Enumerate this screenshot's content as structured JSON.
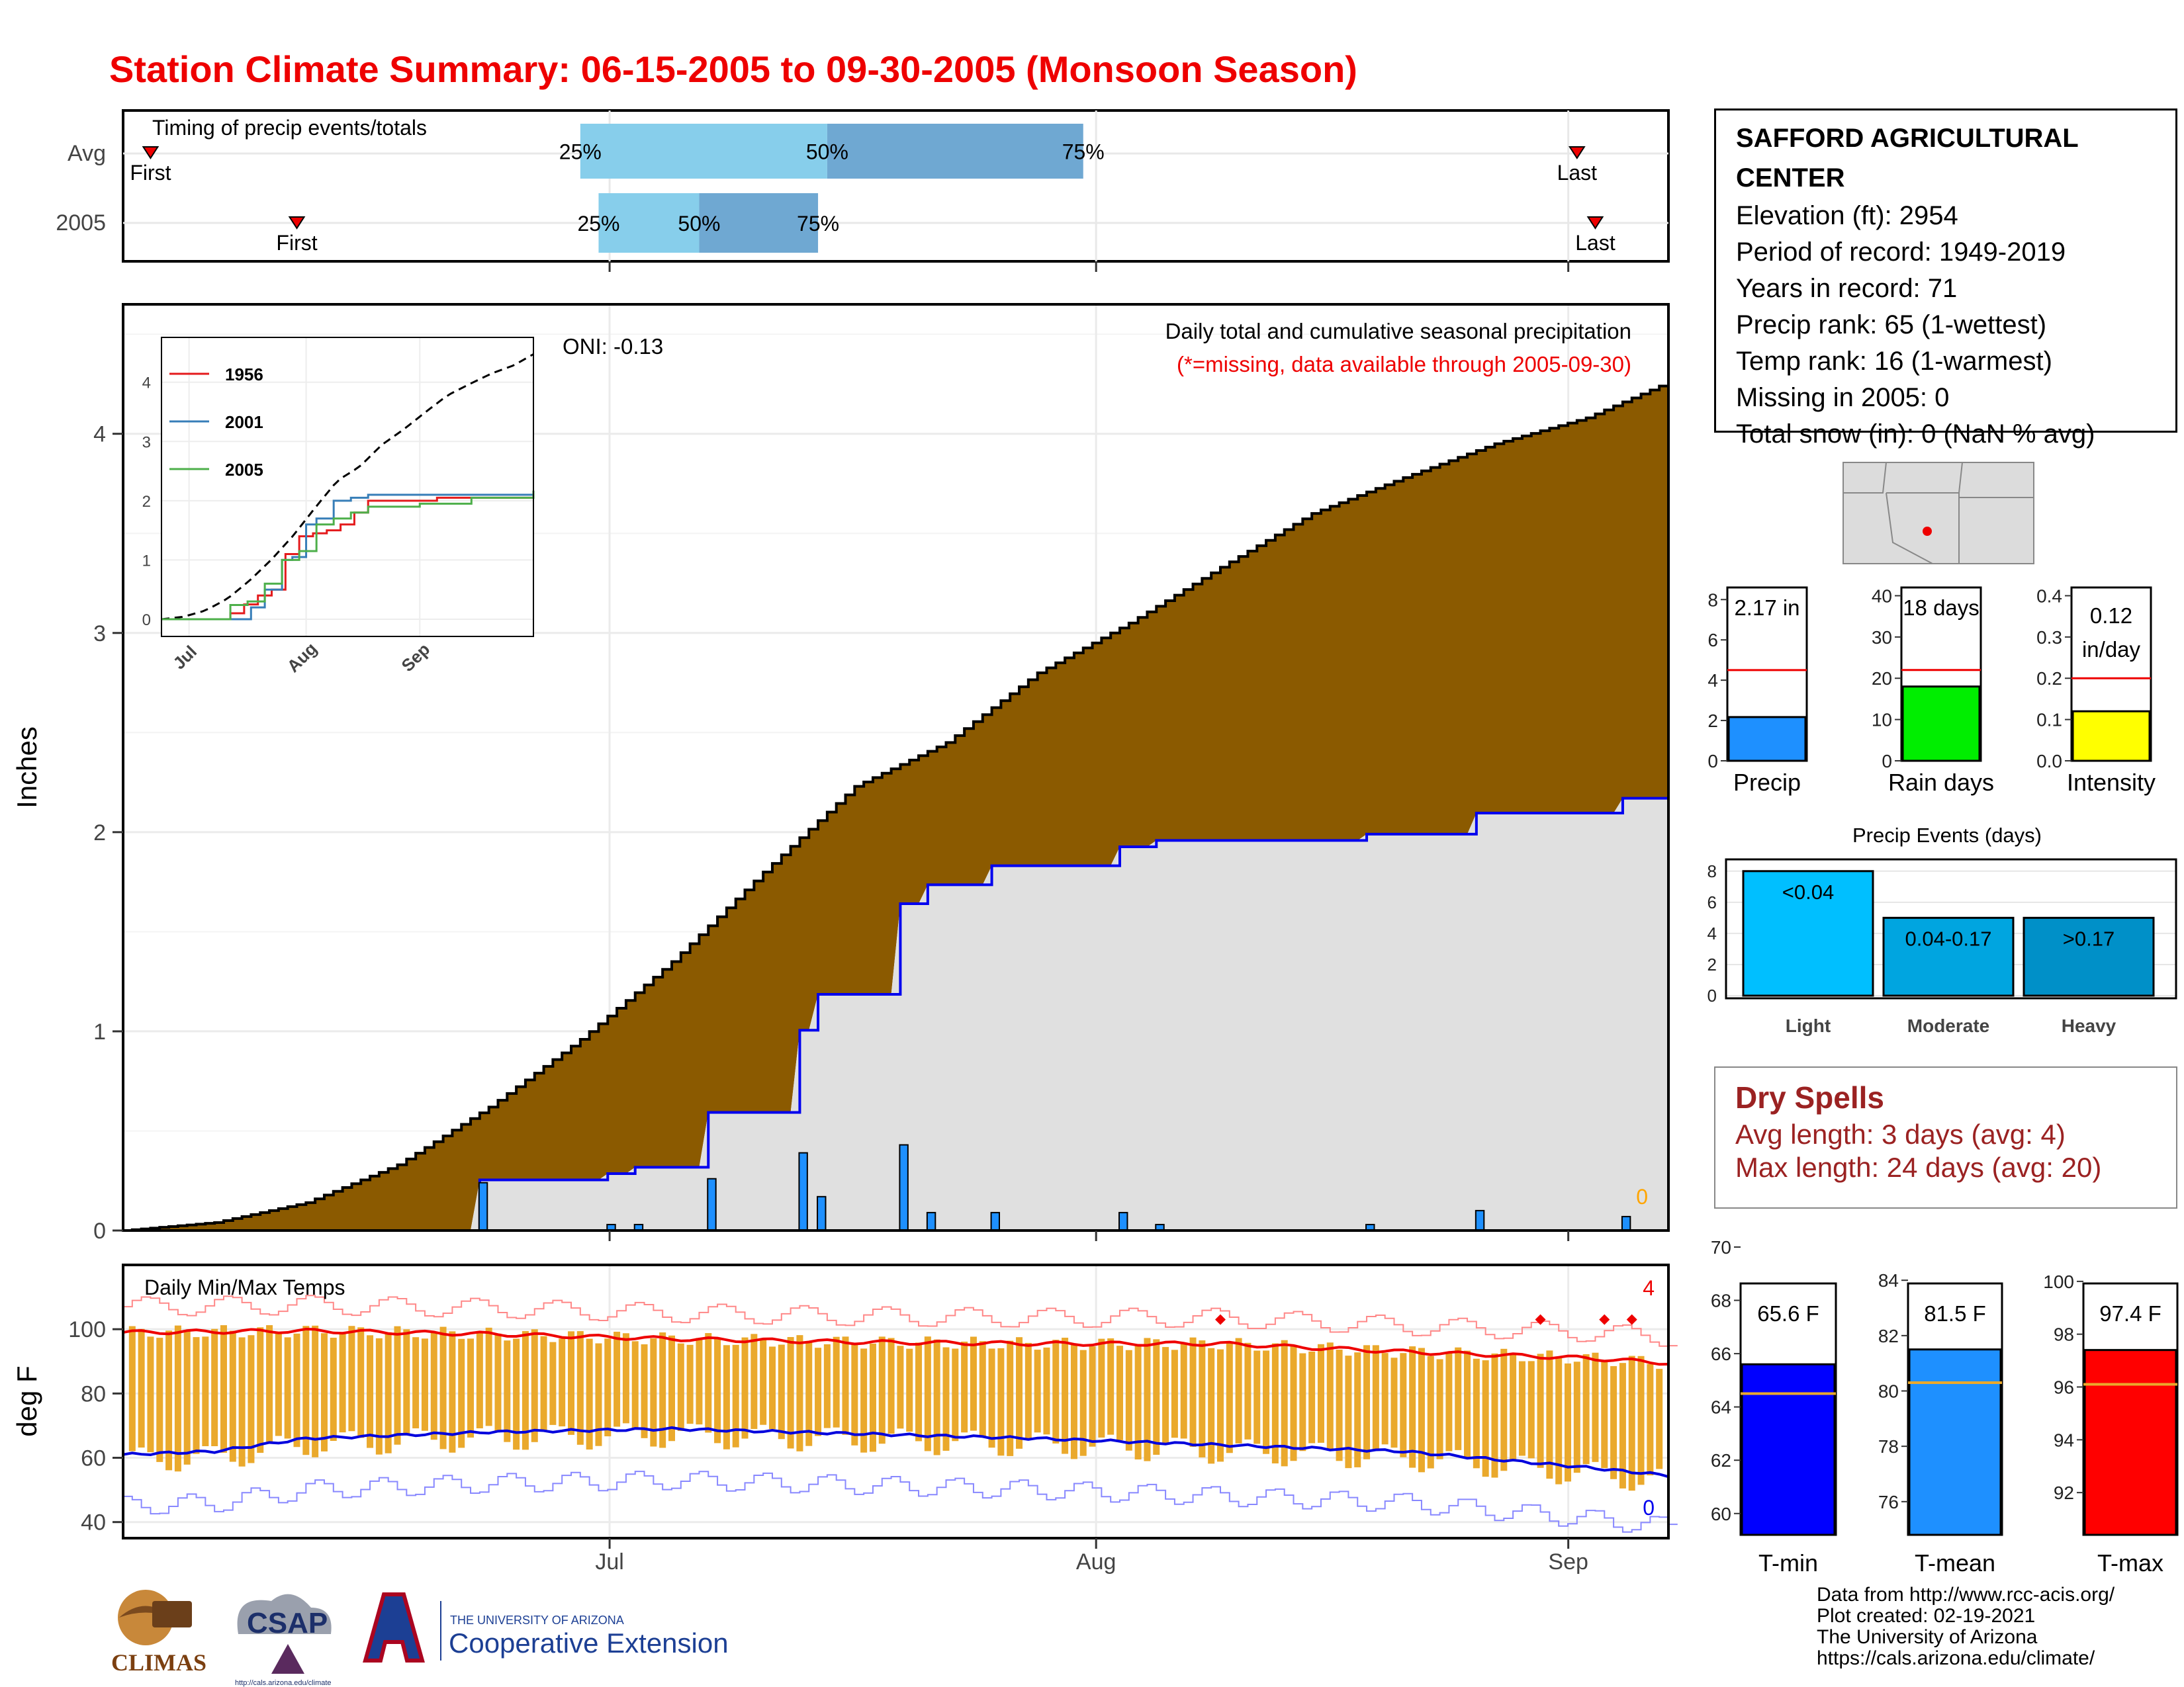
{
  "title": "Station Climate Summary: 06-15-2005 to 09-30-2005 (Monsoon Season)",
  "timing_panel": {
    "label": "Timing of precip events/totals",
    "rows": [
      {
        "label": "Avg",
        "first": "First",
        "last": "Last",
        "q25": "25%",
        "q50": "50%",
        "q75": "75%"
      },
      {
        "label": "2005",
        "first": "First",
        "last": "Last",
        "q25": "25%",
        "q50": "50%",
        "q75": "75%"
      }
    ]
  },
  "precip_panel": {
    "ylabel": "Inches",
    "yticks": [
      "0",
      "1",
      "2",
      "3",
      "4"
    ],
    "title": "Daily total and cumulative seasonal precipitation",
    "subtitle": "(*=missing, data available through 2005-09-30)",
    "oni": "ONI: -0.13",
    "missing_count": "0",
    "inset": {
      "legend": [
        "1956",
        "2001",
        "2005"
      ],
      "yticks": [
        "0",
        "1",
        "2",
        "3",
        "4"
      ],
      "xticks": [
        "Jul",
        "Aug",
        "Sep"
      ]
    }
  },
  "temp_panel": {
    "ylabel": "deg F",
    "yticks": [
      "40",
      "60",
      "80",
      "100"
    ],
    "title": "Daily Min/Max Temps",
    "xticks": [
      "Jul",
      "Aug",
      "Sep"
    ],
    "record_high_count": "4",
    "record_low_count": "0"
  },
  "station": {
    "name_line1": "SAFFORD AGRICULTURAL",
    "name_line2": "CENTER",
    "lines": [
      "Elevation (ft): 2954",
      "Period of record: 1949-2019",
      "Years in record: 71",
      "Precip rank: 65 (1-wettest)",
      "Temp rank: 16 (1-warmest)",
      "Missing in 2005: 0",
      "Total snow (in): 0 (NaN % avg)"
    ]
  },
  "mini_bars": [
    {
      "label": "Precip",
      "value_text": "2.17 in",
      "yticks": [
        "0",
        "2",
        "4",
        "6",
        "8"
      ],
      "color": "#1e90ff"
    },
    {
      "label": "Rain days",
      "value_text": "18 days",
      "yticks": [
        "0",
        "10",
        "20",
        "30",
        "40"
      ],
      "color": "#00ee00"
    },
    {
      "label": "Intensity",
      "value_text_1": "0.12",
      "value_text_2": "in/day",
      "yticks": [
        "0.0",
        "0.1",
        "0.2",
        "0.3",
        "0.4"
      ],
      "color": "#ffff00"
    }
  ],
  "events": {
    "title": "Precip Events (days)",
    "yticks": [
      "0",
      "2",
      "4",
      "6",
      "8"
    ],
    "bars": [
      {
        "label": "Light",
        "range": "<0.04",
        "color": "#00bfff"
      },
      {
        "label": "Moderate",
        "range": "0.04-0.17",
        "color": "#00a5e0"
      },
      {
        "label": "Heavy",
        "range": ">0.17",
        "color": "#0090c8"
      }
    ]
  },
  "dry_spells": {
    "title": "Dry Spells",
    "avg": "Avg length: 3 days (avg: 4)",
    "max": "Max length: 24 days (avg: 20)"
  },
  "temp_bars": [
    {
      "label": "T-min",
      "value_text": "65.6 F",
      "yticks": [
        "60",
        "62",
        "64",
        "66",
        "68",
        "70"
      ],
      "color": "#0000ff"
    },
    {
      "label": "T-mean",
      "value_text": "81.5 F",
      "yticks": [
        "76",
        "78",
        "80",
        "82",
        "84"
      ],
      "color": "#1e90ff"
    },
    {
      "label": "T-max",
      "value_text": "97.4 F",
      "yticks": [
        "92",
        "94",
        "96",
        "98",
        "100"
      ],
      "color": "#ff0000"
    }
  ],
  "footer": [
    "Data from http://www.rcc-acis.org/",
    "Plot created: 02-19-2021",
    "The University of Arizona",
    "https://cals.arizona.edu/climate/"
  ],
  "logos": {
    "climas": "CLIMAS",
    "csap": "CSAP",
    "csap_url": "http://cals.arizona.edu/climate",
    "ua_small": "THE UNIVERSITY OF ARIZONA",
    "ua_big": "Cooperative Extension"
  },
  "chart_data": [
    {
      "type": "bar",
      "title": "Timing of precip events/totals",
      "note": "day-of-season positions (day 0 = 06-15)",
      "series": [
        {
          "name": "Avg",
          "first": 3,
          "q25": 50,
          "q50": 77,
          "q75": 105,
          "last": 159
        },
        {
          "name": "2005",
          "first": 19,
          "q25": 52,
          "q50": 63,
          "q75": 76,
          "last": 161
        }
      ]
    },
    {
      "type": "area",
      "title": "Daily total and cumulative seasonal precipitation",
      "ylabel": "Inches",
      "ylim": [
        0,
        4.65
      ],
      "avg_cumulative_knots": {
        "x": [
          0,
          10,
          20,
          30,
          40,
          50,
          60,
          70,
          80,
          90,
          100,
          110,
          120,
          130,
          140,
          150,
          160,
          169
        ],
        "y": [
          0,
          0.04,
          0.14,
          0.33,
          0.62,
          0.96,
          1.35,
          1.8,
          2.23,
          2.45,
          2.8,
          3.05,
          3.33,
          3.6,
          3.78,
          3.95,
          4.08,
          4.26
        ]
      },
      "daily_precip_2005": {
        "x": [
          39,
          53,
          56,
          64,
          74,
          76,
          85,
          88,
          95,
          109,
          113,
          136,
          148,
          164
        ],
        "y": [
          0.24,
          0.03,
          0.03,
          0.26,
          0.39,
          0.17,
          0.43,
          0.09,
          0.09,
          0.09,
          0.03,
          0.03,
          0.1,
          0.07
        ]
      },
      "cumulative_2005_end": 2.17,
      "inset_series": [
        {
          "name": "1956",
          "x": [
            0,
            15,
            20,
            24,
            28,
            32,
            36,
            40,
            44,
            48,
            52,
            56,
            60,
            70,
            80,
            108
          ],
          "y": [
            0,
            0,
            0.1,
            0.25,
            0.4,
            0.5,
            1.1,
            1.4,
            1.45,
            1.5,
            1.6,
            1.8,
            2.0,
            2.0,
            2.05,
            2.05
          ]
        },
        {
          "name": "2001",
          "x": [
            0,
            20,
            26,
            30,
            35,
            38,
            42,
            45,
            50,
            55,
            60,
            80,
            108
          ],
          "y": [
            0,
            0,
            0.2,
            0.5,
            1.0,
            1.05,
            1.6,
            1.7,
            2.0,
            2.05,
            2.1,
            2.1,
            2.1
          ]
        },
        {
          "name": "2005",
          "x": [
            0,
            15,
            20,
            25,
            30,
            35,
            40,
            45,
            50,
            55,
            60,
            75,
            90,
            108
          ],
          "y": [
            0,
            0,
            0.24,
            0.3,
            0.6,
            1.0,
            1.15,
            1.6,
            1.7,
            1.8,
            1.9,
            1.95,
            2.05,
            2.17
          ]
        }
      ]
    },
    {
      "type": "line",
      "title": "Daily Min/Max Temps",
      "ylabel": "deg F",
      "ylim": [
        35,
        120
      ],
      "avg_tmax": {
        "x": [
          0,
          20,
          40,
          60,
          80,
          100,
          120,
          140,
          160,
          169
        ],
        "y": [
          99,
          99.5,
          98.5,
          97,
          96,
          95.5,
          95.5,
          93,
          91,
          89.5
        ]
      },
      "avg_tmin": {
        "x": [
          0,
          10,
          20,
          40,
          60,
          80,
          100,
          120,
          140,
          160,
          169
        ],
        "y": [
          61,
          62,
          66,
          68,
          69,
          67.5,
          66,
          64,
          62,
          57,
          54.5
        ]
      }
    },
    {
      "type": "bar",
      "categories": [
        "Precip",
        "Rain days",
        "Intensity"
      ],
      "values": [
        2.17,
        18,
        0.12
      ],
      "averages": [
        4.5,
        22,
        0.2
      ]
    },
    {
      "type": "bar",
      "title": "Precip Events (days)",
      "categories": [
        "Light",
        "Moderate",
        "Heavy"
      ],
      "values": [
        8,
        5,
        5
      ]
    },
    {
      "type": "bar",
      "categories": [
        "T-min",
        "T-mean",
        "T-max"
      ],
      "values": [
        65.6,
        81.5,
        97.4
      ],
      "averages": [
        64.5,
        80.3,
        96.1
      ]
    }
  ]
}
